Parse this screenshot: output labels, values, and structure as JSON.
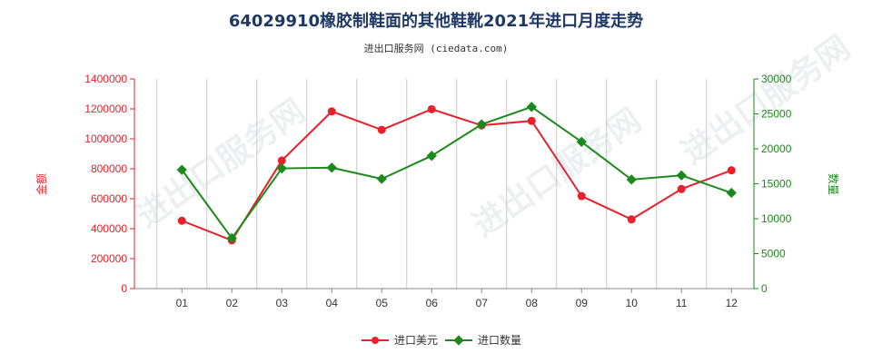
{
  "chart_data": {
    "type": "line",
    "title": "64029910橡胶制鞋面的其他鞋靴2021年进口月度走势",
    "subtitle": "进出口服务网 (ciedata.com)",
    "watermark": "进出口服务网",
    "categories": [
      "01",
      "02",
      "03",
      "04",
      "05",
      "06",
      "07",
      "08",
      "09",
      "10",
      "11",
      "12"
    ],
    "series": [
      {
        "name": "进口美元",
        "axis": "left",
        "color": "#e8202a",
        "values": [
          453000,
          322000,
          855000,
          1183000,
          1060000,
          1198000,
          1090000,
          1120000,
          618000,
          462000,
          665000,
          790000
        ]
      },
      {
        "name": "进口数量",
        "axis": "right",
        "color": "#1a8a1a",
        "values": [
          17000,
          7200,
          17200,
          17300,
          15700,
          19000,
          23500,
          26000,
          21000,
          15600,
          16200,
          13700
        ]
      }
    ],
    "ylabel_left": "金额",
    "ylabel_right": "数量",
    "ylim_left": [
      0,
      1400000
    ],
    "ylim_right": [
      0,
      30000
    ],
    "yticks_left": [
      "0",
      "200000",
      "400000",
      "600000",
      "800000",
      "1000000",
      "1200000",
      "1400000"
    ],
    "yticks_right": [
      "0",
      "5000",
      "10000",
      "15000",
      "20000",
      "25000",
      "30000"
    ],
    "grid": "vertical",
    "legend_position": "bottom-center"
  }
}
